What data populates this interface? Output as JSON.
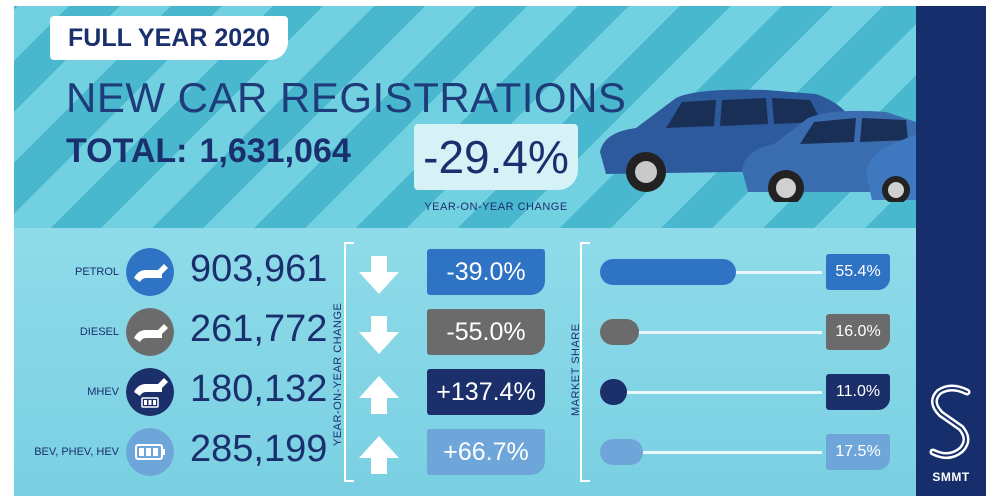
{
  "header": {
    "year_tag": "FULL YEAR 2020",
    "title": "NEW CAR REGISTRATIONS",
    "total_label": "TOTAL:",
    "total_value": "1,631,064",
    "change": "-29.4%",
    "change_caption": "YEAR-ON-YEAR CHANGE"
  },
  "captions": {
    "yoy": "YEAR-ON-YEAR CHANGE",
    "market_share": "MARKET SHARE"
  },
  "rows": [
    {
      "label": "PETROL",
      "count": "903,961",
      "change": "-39.0%",
      "direction": "down",
      "share": "55.4%",
      "share_value": 55.4,
      "color": "#2f73c4"
    },
    {
      "label": "DIESEL",
      "count": "261,772",
      "change": "-55.0%",
      "direction": "down",
      "share": "16.0%",
      "share_value": 16.0,
      "color": "#6b6b6b"
    },
    {
      "label": "MHEV",
      "count": "180,132",
      "change": "+137.4%",
      "direction": "up",
      "share": "11.0%",
      "share_value": 11.0,
      "color": "#1b2f6a"
    },
    {
      "label": "BEV, PHEV, HEV",
      "count": "285,199",
      "change": "+66.7%",
      "direction": "up",
      "share": "17.5%",
      "share_value": 17.5,
      "color": "#6ea6d9"
    }
  ],
  "logo": {
    "text": "SMMT"
  },
  "colors": {
    "navy": "#1a2f6e",
    "sidebar": "#162e6b",
    "stripe_dark": "#3fb0c9",
    "stripe_light": "#6fd0e0"
  }
}
